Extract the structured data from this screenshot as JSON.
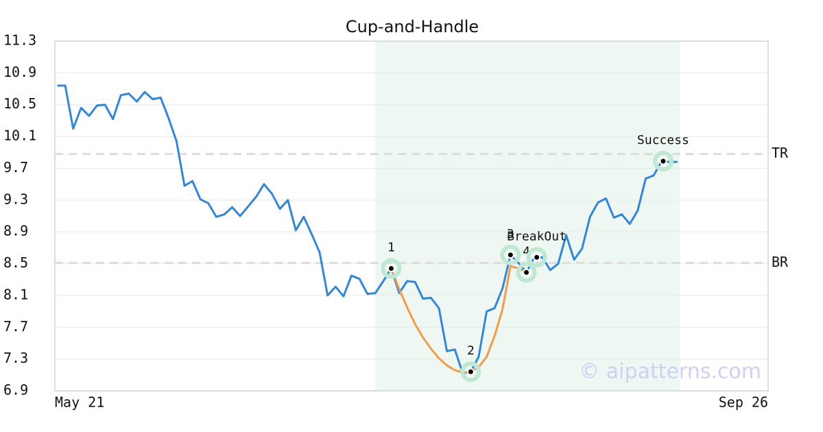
{
  "chart_data": {
    "type": "line",
    "title": "Cup-and-Handle",
    "x": [
      0,
      1,
      2,
      3,
      4,
      5,
      6,
      7,
      8,
      9,
      10,
      11,
      12,
      13,
      14,
      15,
      16,
      17,
      18,
      19,
      20,
      21,
      22,
      23,
      24,
      25,
      26,
      27,
      28,
      29,
      30,
      31,
      32,
      33,
      34,
      35,
      36,
      37,
      38,
      39,
      40,
      41,
      42,
      43,
      44,
      45,
      46,
      47,
      48,
      49,
      50,
      51,
      52,
      53,
      54,
      55,
      56,
      57,
      58,
      59,
      60,
      61,
      62,
      63,
      64,
      65,
      66,
      67,
      68,
      69,
      70,
      71,
      72,
      73,
      74,
      75,
      76,
      77,
      78
    ],
    "series": [
      {
        "color": "#2e86de",
        "values": [
          10.74,
          10.74,
          10.2,
          10.46,
          10.36,
          10.49,
          10.5,
          10.32,
          10.62,
          10.64,
          10.54,
          10.66,
          10.57,
          10.59,
          10.33,
          10.04,
          9.48,
          9.54,
          9.31,
          9.26,
          9.09,
          9.12,
          9.21,
          9.1,
          9.22,
          9.34,
          9.5,
          9.38,
          9.19,
          9.3,
          8.92,
          9.09,
          8.87,
          8.64,
          8.1,
          8.21,
          8.09,
          8.35,
          8.31,
          8.12,
          8.13,
          8.28,
          8.44,
          8.13,
          8.28,
          8.27,
          8.06,
          8.07,
          7.94,
          7.4,
          7.42,
          7.12,
          7.14,
          7.33,
          7.9,
          7.94,
          8.19,
          8.61,
          8.51,
          8.39,
          8.58,
          8.58,
          8.42,
          8.5,
          8.86,
          8.55,
          8.69,
          9.09,
          9.27,
          9.32,
          9.08,
          9.12,
          9.0,
          9.17,
          9.57,
          9.61,
          9.79,
          9.78,
          9.78
        ]
      },
      {
        "color": "#f39c45",
        "values": [
          null,
          null,
          null,
          null,
          null,
          null,
          null,
          null,
          null,
          null,
          null,
          null,
          null,
          null,
          null,
          null,
          null,
          null,
          null,
          null,
          null,
          null,
          null,
          null,
          null,
          null,
          null,
          null,
          null,
          null,
          null,
          null,
          null,
          null,
          null,
          null,
          null,
          null,
          null,
          null,
          null,
          null,
          8.44,
          8.18,
          7.95,
          7.74,
          7.57,
          7.43,
          7.31,
          7.22,
          7.16,
          7.13,
          7.14,
          7.2,
          7.33,
          7.59,
          7.93,
          8.47,
          8.44,
          8.39,
          null,
          null,
          null,
          null,
          null,
          null,
          null,
          null,
          null,
          null,
          null,
          null,
          null,
          null,
          null,
          null,
          null,
          null,
          null
        ]
      }
    ],
    "xlim": [
      -0.3,
      89.4
    ],
    "xticks": [
      {
        "value": -0.3,
        "label": "May 21"
      },
      {
        "value": 89.4,
        "label": "Sep 26"
      }
    ],
    "ylim": [
      6.9,
      11.3
    ],
    "yticks": [
      6.9,
      7.3,
      7.7,
      8.1,
      8.5,
      8.9,
      9.3,
      9.7,
      10.1,
      10.5,
      10.9,
      11.3
    ],
    "grid": true,
    "shade": [
      40,
      78.3
    ],
    "reference_lines": [
      {
        "label": "TR",
        "y": 9.88
      },
      {
        "label": "BR",
        "y": 8.51
      }
    ],
    "annotations": [
      {
        "label": "1",
        "x": 42,
        "y": 8.44
      },
      {
        "label": "2",
        "x": 52,
        "y": 7.14
      },
      {
        "label": "3",
        "x": 57,
        "y": 8.61
      },
      {
        "label": "4",
        "x": 59,
        "y": 8.39
      },
      {
        "label": "BreakOut",
        "x": 60.3,
        "y": 8.58
      },
      {
        "label": "Success",
        "x": 76.2,
        "y": 9.79
      }
    ],
    "watermark": "© aipatterns.com"
  }
}
